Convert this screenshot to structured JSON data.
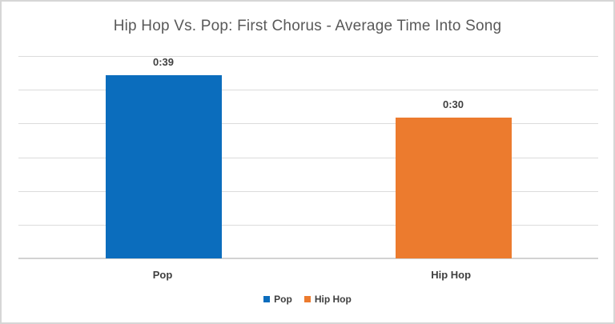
{
  "window": {
    "background_color": "#FFFFFF",
    "border_color": "#D6D6D6"
  },
  "chart_data": {
    "type": "bar",
    "title": "Hip Hop Vs. Pop: First Chorus - Average Time Into Song",
    "categories": [
      "Pop",
      "Hip Hop"
    ],
    "values_seconds": [
      39,
      30
    ],
    "data_labels": [
      "0:39",
      "0:30"
    ],
    "bar_colors": [
      "#0B6DBD",
      "#EC7B2E"
    ],
    "xlabel": "",
    "ylabel": "",
    "ylim_seconds": [
      0,
      43
    ],
    "grid": true,
    "gridline_count": 6,
    "gridline_color": "#DBDBDB",
    "axis_line_color": "#D2D2D2",
    "title_color": "#595959",
    "label_color": "#3F3F3F",
    "legend_position": "bottom",
    "legend": [
      {
        "label": "Pop",
        "color": "#0B6DBD"
      },
      {
        "label": "Hip Hop",
        "color": "#EC7B2E"
      }
    ]
  }
}
